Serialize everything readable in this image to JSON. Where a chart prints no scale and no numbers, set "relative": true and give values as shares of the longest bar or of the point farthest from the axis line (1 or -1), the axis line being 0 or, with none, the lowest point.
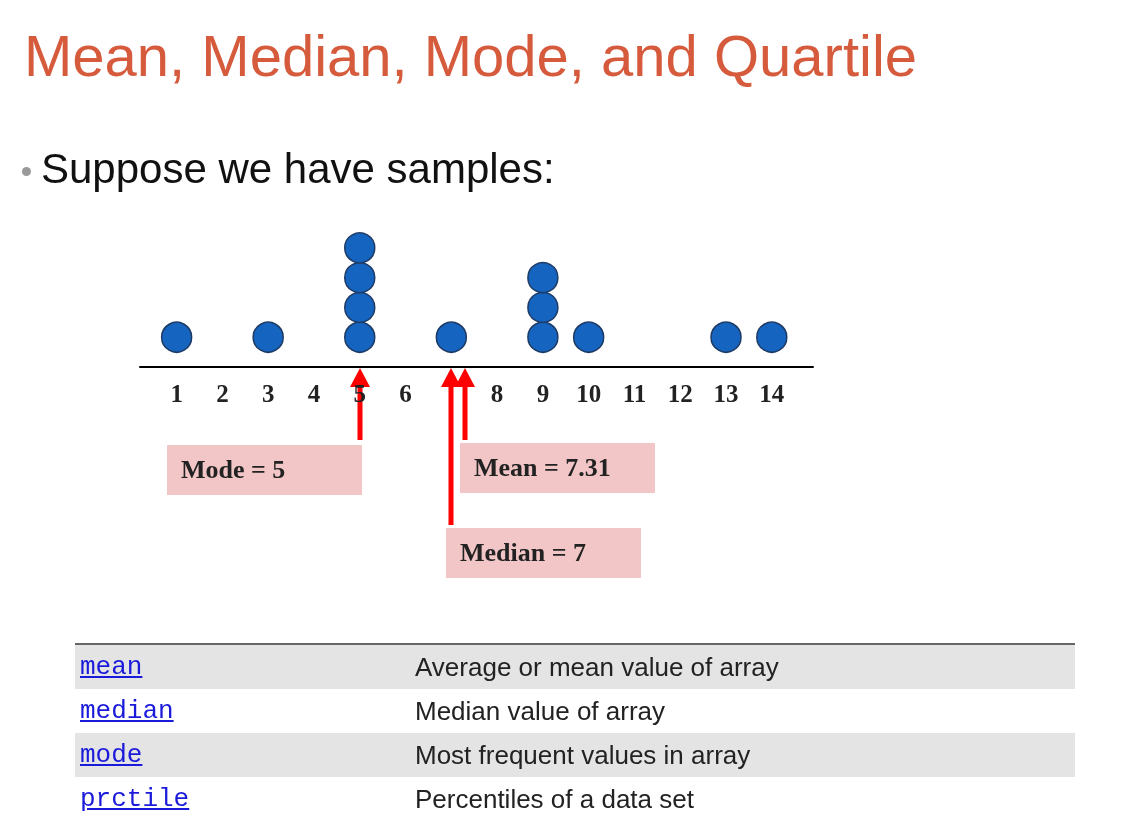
{
  "chart_data": {
    "type": "scatter",
    "title": "Mean, Median, Mode, and Quartile",
    "subtitle": "Suppose we have samples:",
    "x": [
      1,
      3,
      5,
      5,
      5,
      5,
      7,
      9,
      9,
      9,
      10,
      13,
      14
    ],
    "values": [
      0.25,
      0.25,
      0.25,
      0.5,
      0.75,
      1,
      0.25,
      0.25,
      0.5,
      0.75,
      0.25,
      0.25,
      0.25
    ],
    "relative": true,
    "color": "#1565c0",
    "marker": "circle",
    "xlim": [
      0.2,
      14.9
    ],
    "xticks": [
      1,
      2,
      3,
      4,
      5,
      6,
      8,
      9,
      10,
      11,
      12,
      13,
      14
    ],
    "tick_labels": "x",
    "grid": false,
    "annotations": [
      "Mode = 5",
      "Mean = 7.31",
      "Median = 7",
      "mean",
      "Average or mean value of array",
      "median",
      "Median value of array",
      "mode",
      "Most frequent values in array",
      "prctile",
      "Percentiles of a data set"
    ]
  }
}
